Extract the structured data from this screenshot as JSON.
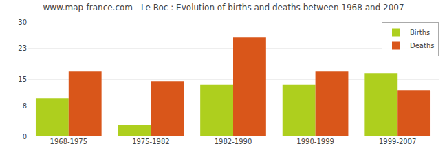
{
  "chart_data": {
    "type": "bar",
    "title": "www.map-france.com - Le Roc : Evolution of births and deaths between 1968 and 2007",
    "categories": [
      "1968-1975",
      "1975-1982",
      "1982-1990",
      "1990-1999",
      "1999-2007"
    ],
    "series": [
      {
        "name": "Births",
        "color": "#aecf1e",
        "values": [
          10,
          3,
          13.5,
          13.5,
          16.5
        ]
      },
      {
        "name": "Deaths",
        "color": "#d9561a",
        "values": [
          17,
          14.5,
          26,
          17,
          12
        ]
      }
    ],
    "ylim": [
      0,
      30
    ],
    "yticks": [
      0,
      8,
      15,
      23,
      30
    ],
    "grid": true,
    "legend": "upper right"
  }
}
